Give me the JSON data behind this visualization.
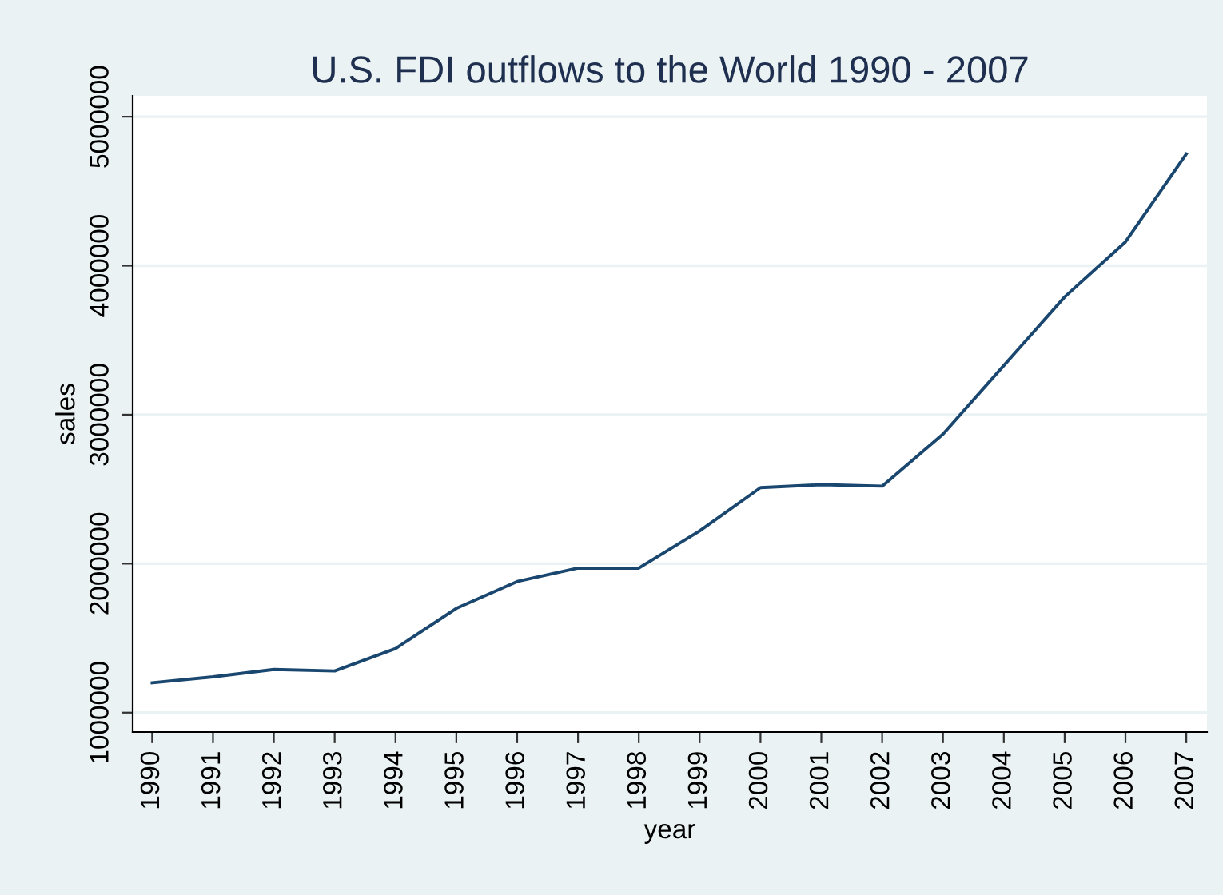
{
  "chart_data": {
    "type": "line",
    "title": "U.S. FDI outflows to the World 1990 - 2007",
    "xlabel": "year",
    "ylabel": "sales",
    "x": [
      1990,
      1991,
      1992,
      1993,
      1994,
      1995,
      1996,
      1997,
      1998,
      1999,
      2000,
      2001,
      2002,
      2003,
      2004,
      2005,
      2006,
      2007
    ],
    "series": [
      {
        "color": "#1a476f",
        "values": [
          1200000,
          1240000,
          1290000,
          1280000,
          1430000,
          1700000,
          1880000,
          1970000,
          1970000,
          2220000,
          2510000,
          2530000,
          2520000,
          2870000,
          3330000,
          3790000,
          4160000,
          4750000
        ]
      }
    ],
    "xlim": [
      1989.68,
      2007.34
    ],
    "xticks": [
      1990,
      1991,
      1992,
      1993,
      1994,
      1995,
      1996,
      1997,
      1998,
      1999,
      2000,
      2001,
      2002,
      2003,
      2004,
      2005,
      2006,
      2007
    ],
    "ylim": [
      870000,
      5140000
    ],
    "yticks": [
      1000000,
      2000000,
      3000000,
      4000000,
      5000000
    ],
    "grid": "y",
    "legend": false,
    "marker": "none",
    "line_style": "solid"
  }
}
